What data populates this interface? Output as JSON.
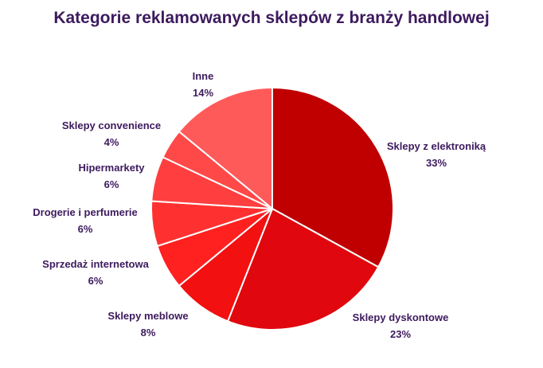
{
  "chart_data": {
    "type": "pie",
    "title": "Kategorie reklamowanych sklepów z branży handlowej",
    "slices": [
      {
        "label": "Sklepy z elektroniką",
        "value": 33,
        "value_label": "33%",
        "color": "#c00000"
      },
      {
        "label": "Sklepy dyskontowe",
        "value": 23,
        "value_label": "23%",
        "color": "#e0080e"
      },
      {
        "label": "Sklepy meblowe",
        "value": 8,
        "value_label": "8%",
        "color": "#f21010"
      },
      {
        "label": "Sprzedaż internetowa",
        "value": 6,
        "value_label": "6%",
        "color": "#ff2020"
      },
      {
        "label": "Drogerie i perfumerie",
        "value": 6,
        "value_label": "6%",
        "color": "#ff3030"
      },
      {
        "label": "Hipermarkety",
        "value": 6,
        "value_label": "6%",
        "color": "#ff3f3f"
      },
      {
        "label": "Sklepy convenience",
        "value": 4,
        "value_label": "4%",
        "color": "#ff4848"
      },
      {
        "label": "Inne",
        "value": 14,
        "value_label": "14%",
        "color": "#ff5a5a"
      }
    ]
  }
}
